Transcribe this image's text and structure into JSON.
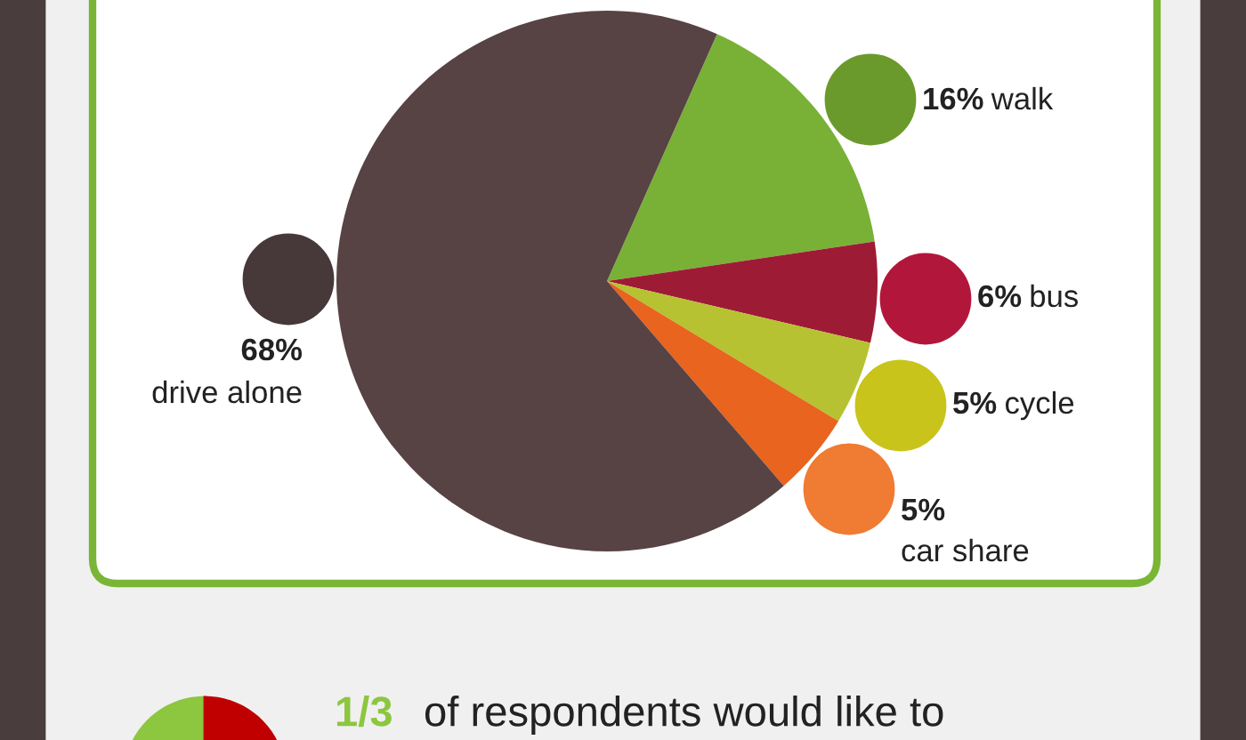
{
  "chart_data": {
    "type": "pie",
    "categories": [
      "walk",
      "bus",
      "cycle",
      "car share",
      "drive alone"
    ],
    "values": [
      16,
      6,
      5,
      5,
      68
    ],
    "value_labels": [
      "16%",
      "6%",
      "5%",
      "5%",
      "68%"
    ],
    "colors": [
      "#78b136",
      "#9e1b36",
      "#b6c231",
      "#e8641f",
      "#574244"
    ],
    "annotations": [
      "1/3",
      "of respondents would like to"
    ],
    "legend": false
  }
}
